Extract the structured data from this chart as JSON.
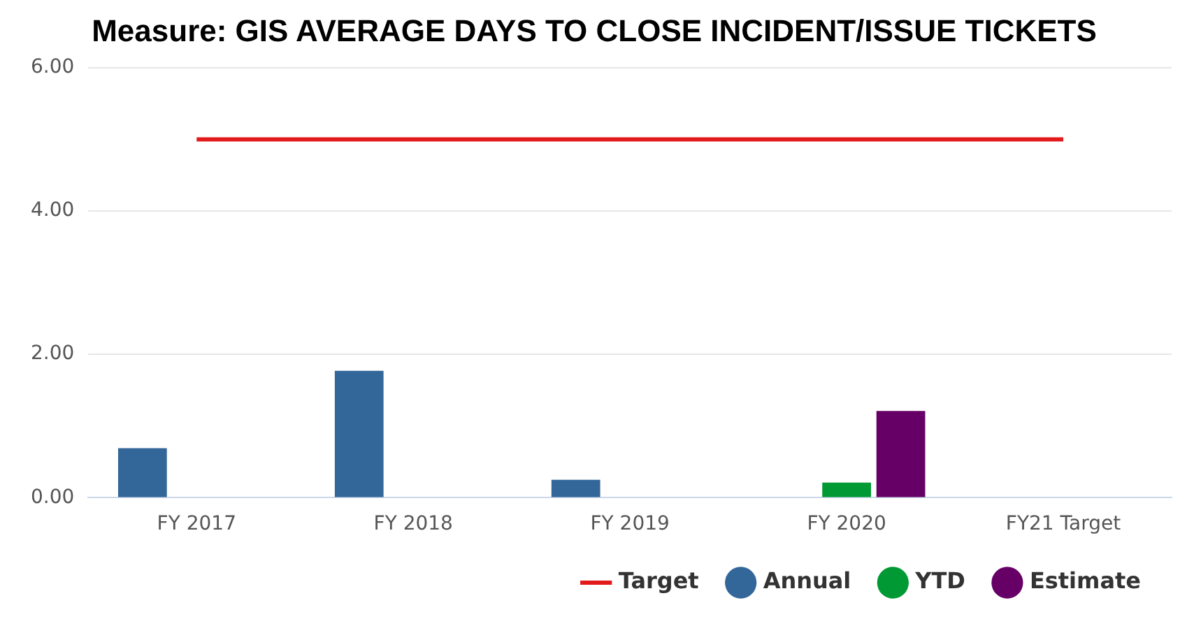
{
  "chart_data": {
    "type": "bar",
    "title": "Measure: GIS AVERAGE DAYS TO CLOSE INCIDENT/ISSUE TICKETS",
    "categories": [
      "FY 2017",
      "FY 2018",
      "FY 2019",
      "FY 2020",
      "FY21 Target"
    ],
    "series": [
      {
        "name": "Annual",
        "color": "#336699",
        "values": [
          0.69,
          1.77,
          0.25,
          null,
          null
        ]
      },
      {
        "name": "Target",
        "type": "line",
        "color": "#e31a1c",
        "values": [
          5,
          5,
          5,
          5,
          5
        ]
      },
      {
        "name": "YTD",
        "color": "#009933",
        "values": [
          null,
          null,
          null,
          0.21,
          null
        ]
      },
      {
        "name": "Estimate",
        "color": "#660066",
        "values": [
          null,
          null,
          null,
          1.21,
          null
        ]
      }
    ],
    "ylim": [
      0,
      6
    ],
    "yticks": [
      {
        "value": 0,
        "label": "0.00"
      },
      {
        "value": 2,
        "label": "2.00"
      },
      {
        "value": 4,
        "label": "4.00"
      },
      {
        "value": 6,
        "label": "6.00"
      }
    ],
    "grid": "y",
    "legend": "bottom right",
    "marker": "none"
  }
}
